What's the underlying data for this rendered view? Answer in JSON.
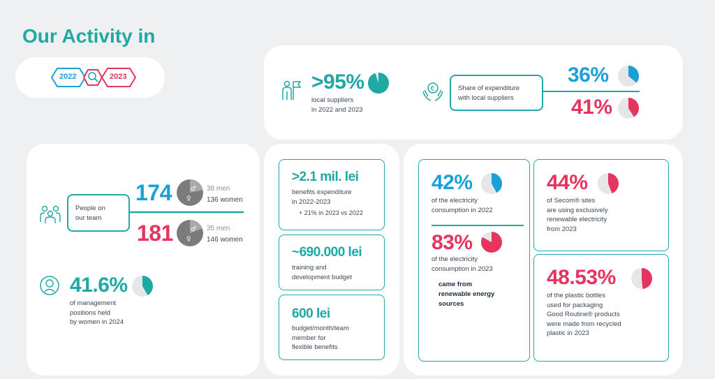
{
  "title": "Our Activity in",
  "year_selector": {
    "year_a": "2022",
    "year_b": "2023"
  },
  "suppliers": {
    "value": ">95%",
    "desc_line1": "local suppliers",
    "desc_line2": "in 2022 and 2023",
    "pie_fraction": 0.95
  },
  "expenditure": {
    "label_line1": "Share of expenditure",
    "label_line2": "with local suppliers",
    "value_2022": "36%",
    "value_2023": "41%",
    "pie_2022": 0.36,
    "pie_2023": 0.41
  },
  "team": {
    "label_line1": "People on",
    "label_line2": "our team",
    "count_2022": "174",
    "men_2022": "38 men",
    "women_2022": "136 women",
    "count_2023": "181",
    "men_2023": "35 men",
    "women_2023": "146 women"
  },
  "management": {
    "value": "41.6%",
    "desc_line1": "of management",
    "desc_line2": "positions held",
    "desc_line3": "by women in 2024",
    "pie_fraction": 0.416
  },
  "benefits": {
    "value": ">2.1 mil. lei",
    "desc_line1": "benefits expenditure",
    "desc_line2": "in 2022-2023",
    "desc_line3": "+ 21% in 2023 vs 2022"
  },
  "training": {
    "value": "~690.000 lei",
    "desc_line1": "training and",
    "desc_line2": "development budget"
  },
  "flex": {
    "value": "600 lei",
    "desc_line1": "budget/month/team",
    "desc_line2": "member for",
    "desc_line3": "flexible benefits"
  },
  "electricity": {
    "value_2022": "42%",
    "desc_2022_line1": "of the electricity",
    "desc_2022_line2": "consumption in 2022",
    "pie_2022": 0.42,
    "value_2023": "83%",
    "desc_2023_line1": "of the electricity",
    "desc_2023_line2": "consumption in 2023",
    "pie_2023": 0.83,
    "note_line1": "came from",
    "note_line2": "renewable energy",
    "note_line3": "sources"
  },
  "sites": {
    "value": "44%",
    "desc_line1": "of Secom® sites",
    "desc_line2": "are using exclusively",
    "desc_line3": "renewable electricity",
    "desc_line4": "from 2023",
    "pie_fraction": 0.44
  },
  "plastic": {
    "value": "48.53%",
    "desc_line1": "of the plastic bottles",
    "desc_line2": "used for packaging",
    "desc_line3": "Good Routine® products",
    "desc_line4": "were made from recycled",
    "desc_line5": "plastic in 2023",
    "pie_fraction": 0.4853
  },
  "colors": {
    "teal": "#1fa8a4",
    "blue": "#1ca0d8",
    "pink": "#e5355f",
    "grey": "#e4e6e8"
  },
  "icons": [
    "people-flag-icon",
    "euro-hands-icon",
    "team-icon",
    "woman-icon",
    "magnifier-icon",
    "male-symbol-icon",
    "female-symbol-icon"
  ]
}
